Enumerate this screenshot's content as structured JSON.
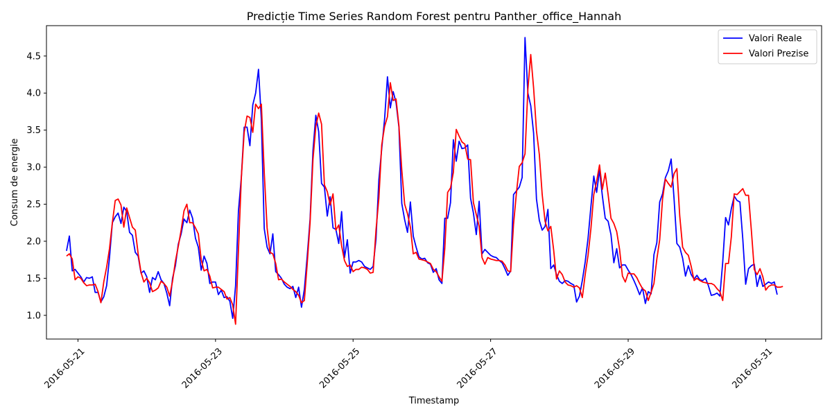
{
  "chart_data": {
    "type": "line",
    "title": "Predicție Time Series Random Forest pentru Panther_office_Hannah",
    "xlabel": "Timestamp",
    "ylabel": "Consum de energie",
    "xlim": [
      "2016-05-20 13:00",
      "2016-05-31 19:30"
    ],
    "ylim": [
      0.68,
      4.91
    ],
    "x_ticks": [
      "2016-05-21",
      "2016-05-23",
      "2016-05-25",
      "2016-05-27",
      "2016-05-29",
      "2016-05-31"
    ],
    "y_ticks": [
      "1.0",
      "1.5",
      "2.0",
      "2.5",
      "3.0",
      "3.5",
      "4.0",
      "4.5"
    ],
    "x_start": "2016-05-20 20:00",
    "x_step_hours": 1,
    "grid": false,
    "legend_position": "top-right",
    "series": [
      {
        "name": "Valori Reale",
        "color": "#0000ff",
        "values": [
          1.87,
          2.07,
          1.6,
          1.62,
          1.57,
          1.52,
          1.45,
          1.51,
          1.5,
          1.52,
          1.31,
          1.31,
          1.18,
          1.25,
          1.4,
          1.78,
          2.25,
          2.33,
          2.38,
          2.24,
          2.46,
          2.4,
          2.12,
          2.08,
          1.85,
          1.8,
          1.57,
          1.6,
          1.52,
          1.31,
          1.51,
          1.48,
          1.59,
          1.48,
          1.43,
          1.3,
          1.13,
          1.5,
          1.67,
          1.96,
          2.1,
          2.3,
          2.25,
          2.42,
          2.31,
          2.04,
          1.92,
          1.61,
          1.8,
          1.7,
          1.43,
          1.45,
          1.45,
          1.28,
          1.34,
          1.24,
          1.25,
          1.19,
          0.96,
          1.4,
          2.41,
          2.86,
          3.54,
          3.54,
          3.29,
          3.84,
          4.0,
          4.32,
          3.64,
          2.17,
          1.92,
          1.83,
          2.1,
          1.59,
          1.55,
          1.5,
          1.42,
          1.38,
          1.36,
          1.39,
          1.24,
          1.38,
          1.11,
          1.35,
          1.8,
          2.3,
          3.22,
          3.7,
          3.48,
          2.78,
          2.73,
          2.34,
          2.6,
          2.18,
          2.16,
          1.97,
          2.4,
          1.78,
          2.02,
          1.57,
          1.72,
          1.72,
          1.74,
          1.72,
          1.66,
          1.64,
          1.62,
          1.66,
          2.03,
          2.83,
          3.25,
          3.65,
          4.22,
          3.8,
          4.02,
          3.87,
          3.54,
          2.51,
          2.29,
          2.12,
          2.53,
          2.07,
          1.92,
          1.79,
          1.76,
          1.77,
          1.71,
          1.69,
          1.58,
          1.63,
          1.48,
          1.43,
          2.31,
          2.31,
          2.52,
          3.37,
          3.08,
          3.35,
          3.25,
          3.26,
          3.3,
          2.58,
          2.38,
          2.09,
          2.54,
          1.83,
          1.89,
          1.85,
          1.81,
          1.79,
          1.78,
          1.74,
          1.71,
          1.63,
          1.54,
          1.6,
          2.63,
          2.68,
          2.73,
          2.86,
          4.75,
          4.0,
          3.83,
          3.46,
          2.57,
          2.28,
          2.15,
          2.2,
          2.43,
          1.63,
          1.68,
          1.55,
          1.46,
          1.43,
          1.47,
          1.46,
          1.43,
          1.41,
          1.18,
          1.26,
          1.47,
          1.72,
          2.04,
          2.47,
          2.88,
          2.66,
          2.96,
          2.61,
          2.31,
          2.27,
          2.09,
          1.71,
          1.9,
          1.64,
          1.68,
          1.68,
          1.61,
          1.55,
          1.47,
          1.38,
          1.28,
          1.37,
          1.16,
          1.32,
          1.29,
          1.82,
          1.98,
          2.53,
          2.64,
          2.86,
          2.95,
          3.11,
          2.58,
          1.97,
          1.92,
          1.77,
          1.53,
          1.67,
          1.55,
          1.49,
          1.54,
          1.48,
          1.47,
          1.5,
          1.4,
          1.27,
          1.28,
          1.3,
          1.26,
          1.72,
          2.32,
          2.22,
          2.44,
          2.61,
          2.55,
          2.53,
          2.03,
          1.42,
          1.63,
          1.67,
          1.69,
          1.39,
          1.54,
          1.39,
          1.42,
          1.45,
          1.43,
          1.45,
          1.28
        ]
      },
      {
        "name": "Valori Prezise",
        "color": "#ff0000",
        "values": [
          1.8,
          1.83,
          1.76,
          1.48,
          1.52,
          1.5,
          1.44,
          1.4,
          1.41,
          1.41,
          1.42,
          1.32,
          1.17,
          1.45,
          1.65,
          1.9,
          2.25,
          2.55,
          2.57,
          2.49,
          2.19,
          2.45,
          2.32,
          2.19,
          2.15,
          1.83,
          1.58,
          1.45,
          1.5,
          1.44,
          1.32,
          1.34,
          1.37,
          1.46,
          1.43,
          1.38,
          1.26,
          1.46,
          1.73,
          1.93,
          2.15,
          2.41,
          2.5,
          2.25,
          2.25,
          2.18,
          2.1,
          1.75,
          1.6,
          1.62,
          1.53,
          1.37,
          1.38,
          1.38,
          1.35,
          1.32,
          1.22,
          1.24,
          1.14,
          0.88,
          1.88,
          2.85,
          3.47,
          3.69,
          3.67,
          3.47,
          3.85,
          3.79,
          3.85,
          2.93,
          2.18,
          1.85,
          1.83,
          1.7,
          1.48,
          1.49,
          1.45,
          1.42,
          1.39,
          1.35,
          1.32,
          1.27,
          1.17,
          1.2,
          1.7,
          2.25,
          3.1,
          3.55,
          3.73,
          3.58,
          2.76,
          2.67,
          2.49,
          2.64,
          2.15,
          2.22,
          1.94,
          1.74,
          1.66,
          1.68,
          1.59,
          1.62,
          1.62,
          1.65,
          1.64,
          1.62,
          1.57,
          1.58,
          2.15,
          2.58,
          3.3,
          3.55,
          3.68,
          4.14,
          3.9,
          3.92,
          3.56,
          2.96,
          2.5,
          2.37,
          2.19,
          1.83,
          1.85,
          1.76,
          1.75,
          1.74,
          1.72,
          1.7,
          1.62,
          1.59,
          1.52,
          1.46,
          1.9,
          2.66,
          2.72,
          2.93,
          3.51,
          3.42,
          3.34,
          3.31,
          3.11,
          3.1,
          2.52,
          2.36,
          2.2,
          1.78,
          1.69,
          1.78,
          1.76,
          1.75,
          1.74,
          1.74,
          1.73,
          1.68,
          1.6,
          1.59,
          2.23,
          2.65,
          3.01,
          3.06,
          3.18,
          4.05,
          4.52,
          4.07,
          3.49,
          3.17,
          2.63,
          2.27,
          2.14,
          2.2,
          1.88,
          1.49,
          1.6,
          1.55,
          1.45,
          1.41,
          1.4,
          1.38,
          1.4,
          1.37,
          1.24,
          1.55,
          1.81,
          2.17,
          2.63,
          2.81,
          3.03,
          2.7,
          2.92,
          2.63,
          2.31,
          2.24,
          2.13,
          1.89,
          1.53,
          1.45,
          1.57,
          1.56,
          1.56,
          1.51,
          1.43,
          1.36,
          1.33,
          1.2,
          1.31,
          1.43,
          1.76,
          2.02,
          2.57,
          2.84,
          2.78,
          2.73,
          2.91,
          2.98,
          2.34,
          1.92,
          1.85,
          1.81,
          1.66,
          1.47,
          1.5,
          1.47,
          1.45,
          1.44,
          1.43,
          1.43,
          1.41,
          1.36,
          1.32,
          1.2,
          1.7,
          1.7,
          2.06,
          2.64,
          2.63,
          2.67,
          2.71,
          2.62,
          2.62,
          2.14,
          1.62,
          1.55,
          1.63,
          1.52,
          1.34,
          1.39,
          1.41,
          1.41,
          1.38,
          1.38,
          1.39
        ]
      }
    ]
  }
}
